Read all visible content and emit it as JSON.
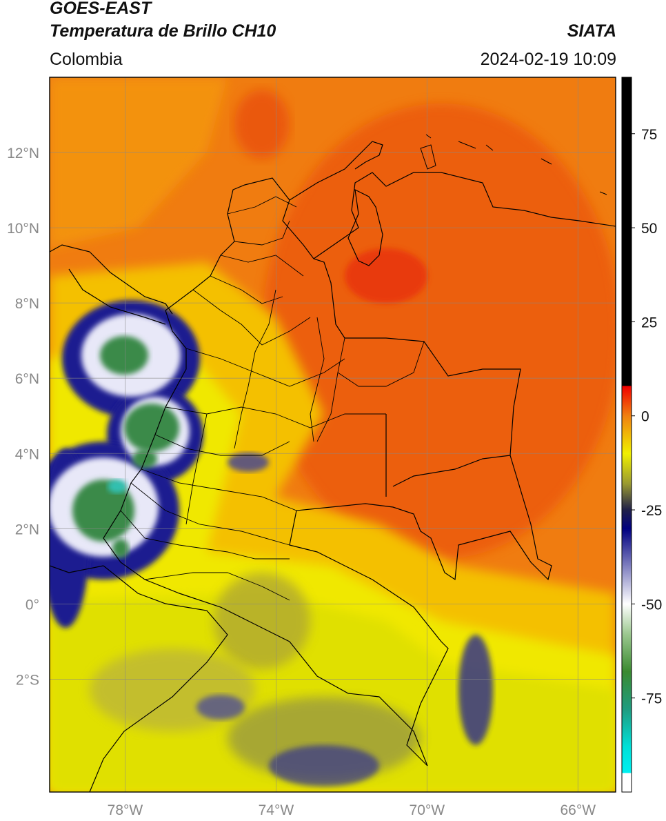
{
  "header": {
    "satellite": "GOES-EAST",
    "product": "Temperatura de Brillo CH10",
    "region": "Colombia",
    "source": "SIATA",
    "datetime": "2024-02-19 10:09"
  },
  "map": {
    "lon_range": [
      -80,
      -65
    ],
    "lat_range": [
      -5,
      14
    ],
    "lon_ticks": [
      {
        "value": -78,
        "label": "78°W"
      },
      {
        "value": -74,
        "label": "74°W"
      },
      {
        "value": -70,
        "label": "70°W"
      },
      {
        "value": -66,
        "label": "66°W"
      }
    ],
    "lat_ticks": [
      {
        "value": 12,
        "label": "12°N"
      },
      {
        "value": 10,
        "label": "10°N"
      },
      {
        "value": 8,
        "label": "8°N"
      },
      {
        "value": 6,
        "label": "6°N"
      },
      {
        "value": 4,
        "label": "4°N"
      },
      {
        "value": 2,
        "label": "2°N"
      },
      {
        "value": 0,
        "label": "0°"
      },
      {
        "value": -2,
        "label": "2°S"
      }
    ],
    "grid": true,
    "background_color": "#f07c10"
  },
  "colorbar": {
    "range": [
      -100,
      90
    ],
    "ticks": [
      {
        "value": 75,
        "label": "75"
      },
      {
        "value": 50,
        "label": "50"
      },
      {
        "value": 25,
        "label": "25"
      },
      {
        "value": 0,
        "label": "0"
      },
      {
        "value": -25,
        "label": "-25"
      },
      {
        "value": -50,
        "label": "-50"
      },
      {
        "value": -75,
        "label": "-75"
      }
    ],
    "stops": [
      {
        "value": -100,
        "color": "#ffffff"
      },
      {
        "value": -95,
        "color": "#ffffff"
      },
      {
        "value": -94.9,
        "color": "#00f0f0"
      },
      {
        "value": -88,
        "color": "#00e0d8"
      },
      {
        "value": -78,
        "color": "#1f9c80"
      },
      {
        "value": -68,
        "color": "#3a8a30"
      },
      {
        "value": -58,
        "color": "#9cc890"
      },
      {
        "value": -50,
        "color": "#ffffff"
      },
      {
        "value": -40,
        "color": "#8080c0"
      },
      {
        "value": -30,
        "color": "#000080"
      },
      {
        "value": -25,
        "color": "#202048"
      },
      {
        "value": -18,
        "color": "#9a9a30"
      },
      {
        "value": -10,
        "color": "#f0f000"
      },
      {
        "value": 0,
        "color": "#f08010"
      },
      {
        "value": 7.9,
        "color": "#f00000"
      },
      {
        "value": 8,
        "color": "#000000"
      },
      {
        "value": 90,
        "color": "#000000"
      }
    ]
  }
}
